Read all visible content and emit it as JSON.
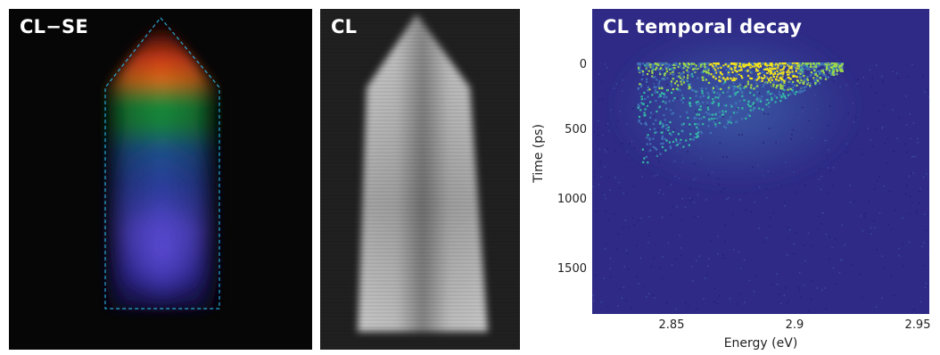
{
  "panels": {
    "cl_se": {
      "title": "CL−SE"
    },
    "cl": {
      "title": "CL"
    },
    "decay": {
      "title": "CL temporal decay",
      "ylabel": "Time (ps)",
      "xlabel": "Energy (eV)",
      "yticks": [
        "0",
        "500",
        "1000",
        "1500"
      ],
      "xticks": [
        "2.85",
        "2.9",
        "2.95"
      ]
    }
  },
  "colors": {
    "outline": "#2aa7d8",
    "plot_bg": "#2f2a87",
    "hot": "#f5e51b",
    "warm": "#35b8a5"
  }
}
